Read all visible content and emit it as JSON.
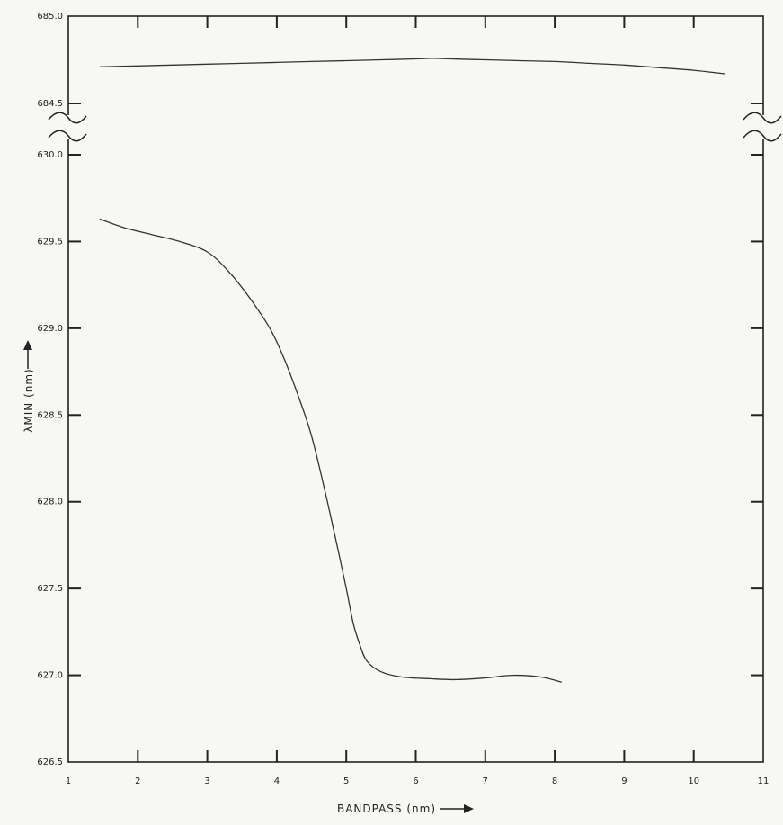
{
  "chart_data": {
    "type": "line",
    "title": "",
    "xlabel": "BANDPASS (nm)",
    "ylabel": "λMIN (nm)",
    "xlim": [
      1,
      11
    ],
    "x_ticks": [
      "1",
      "2",
      "3",
      "4",
      "5",
      "6",
      "7",
      "8",
      "9",
      "10",
      "11"
    ],
    "y_break": true,
    "y_upper": {
      "range": [
        684.5,
        685.0
      ],
      "ticks": [
        "684.5",
        "685.0"
      ]
    },
    "y_lower": {
      "range": [
        626.5,
        630.0
      ],
      "ticks": [
        "626.5",
        "627.0",
        "627.5",
        "628.0",
        "628.5",
        "629.0",
        "629.5",
        "630.0"
      ]
    },
    "series": [
      {
        "segment": "upper",
        "x": [
          1.45,
          2.0,
          2.5,
          3.0,
          3.5,
          4.0,
          4.5,
          5.0,
          5.5,
          6.0,
          6.25,
          6.5,
          7.0,
          7.5,
          8.0,
          8.5,
          9.0,
          9.5,
          10.0,
          10.45
        ],
        "y": [
          684.71,
          684.715,
          684.72,
          684.725,
          684.73,
          684.735,
          684.74,
          684.745,
          684.75,
          684.755,
          684.758,
          684.755,
          684.75,
          684.745,
          684.74,
          684.73,
          684.72,
          684.705,
          684.69,
          684.67
        ]
      },
      {
        "segment": "lower",
        "x": [
          1.45,
          1.8,
          2.2,
          2.6,
          3.0,
          3.3,
          3.6,
          3.9,
          4.1,
          4.3,
          4.5,
          4.7,
          4.85,
          5.0,
          5.1,
          5.2,
          5.3,
          5.5,
          5.8,
          6.2,
          6.6,
          7.0,
          7.4,
          7.8,
          8.1
        ],
        "y": [
          629.63,
          629.58,
          629.54,
          629.5,
          629.44,
          629.33,
          629.18,
          629.0,
          628.83,
          628.62,
          628.38,
          628.05,
          627.78,
          627.5,
          627.3,
          627.17,
          627.08,
          627.02,
          626.99,
          626.98,
          626.975,
          626.985,
          627.0,
          626.99,
          626.96
        ]
      }
    ]
  }
}
